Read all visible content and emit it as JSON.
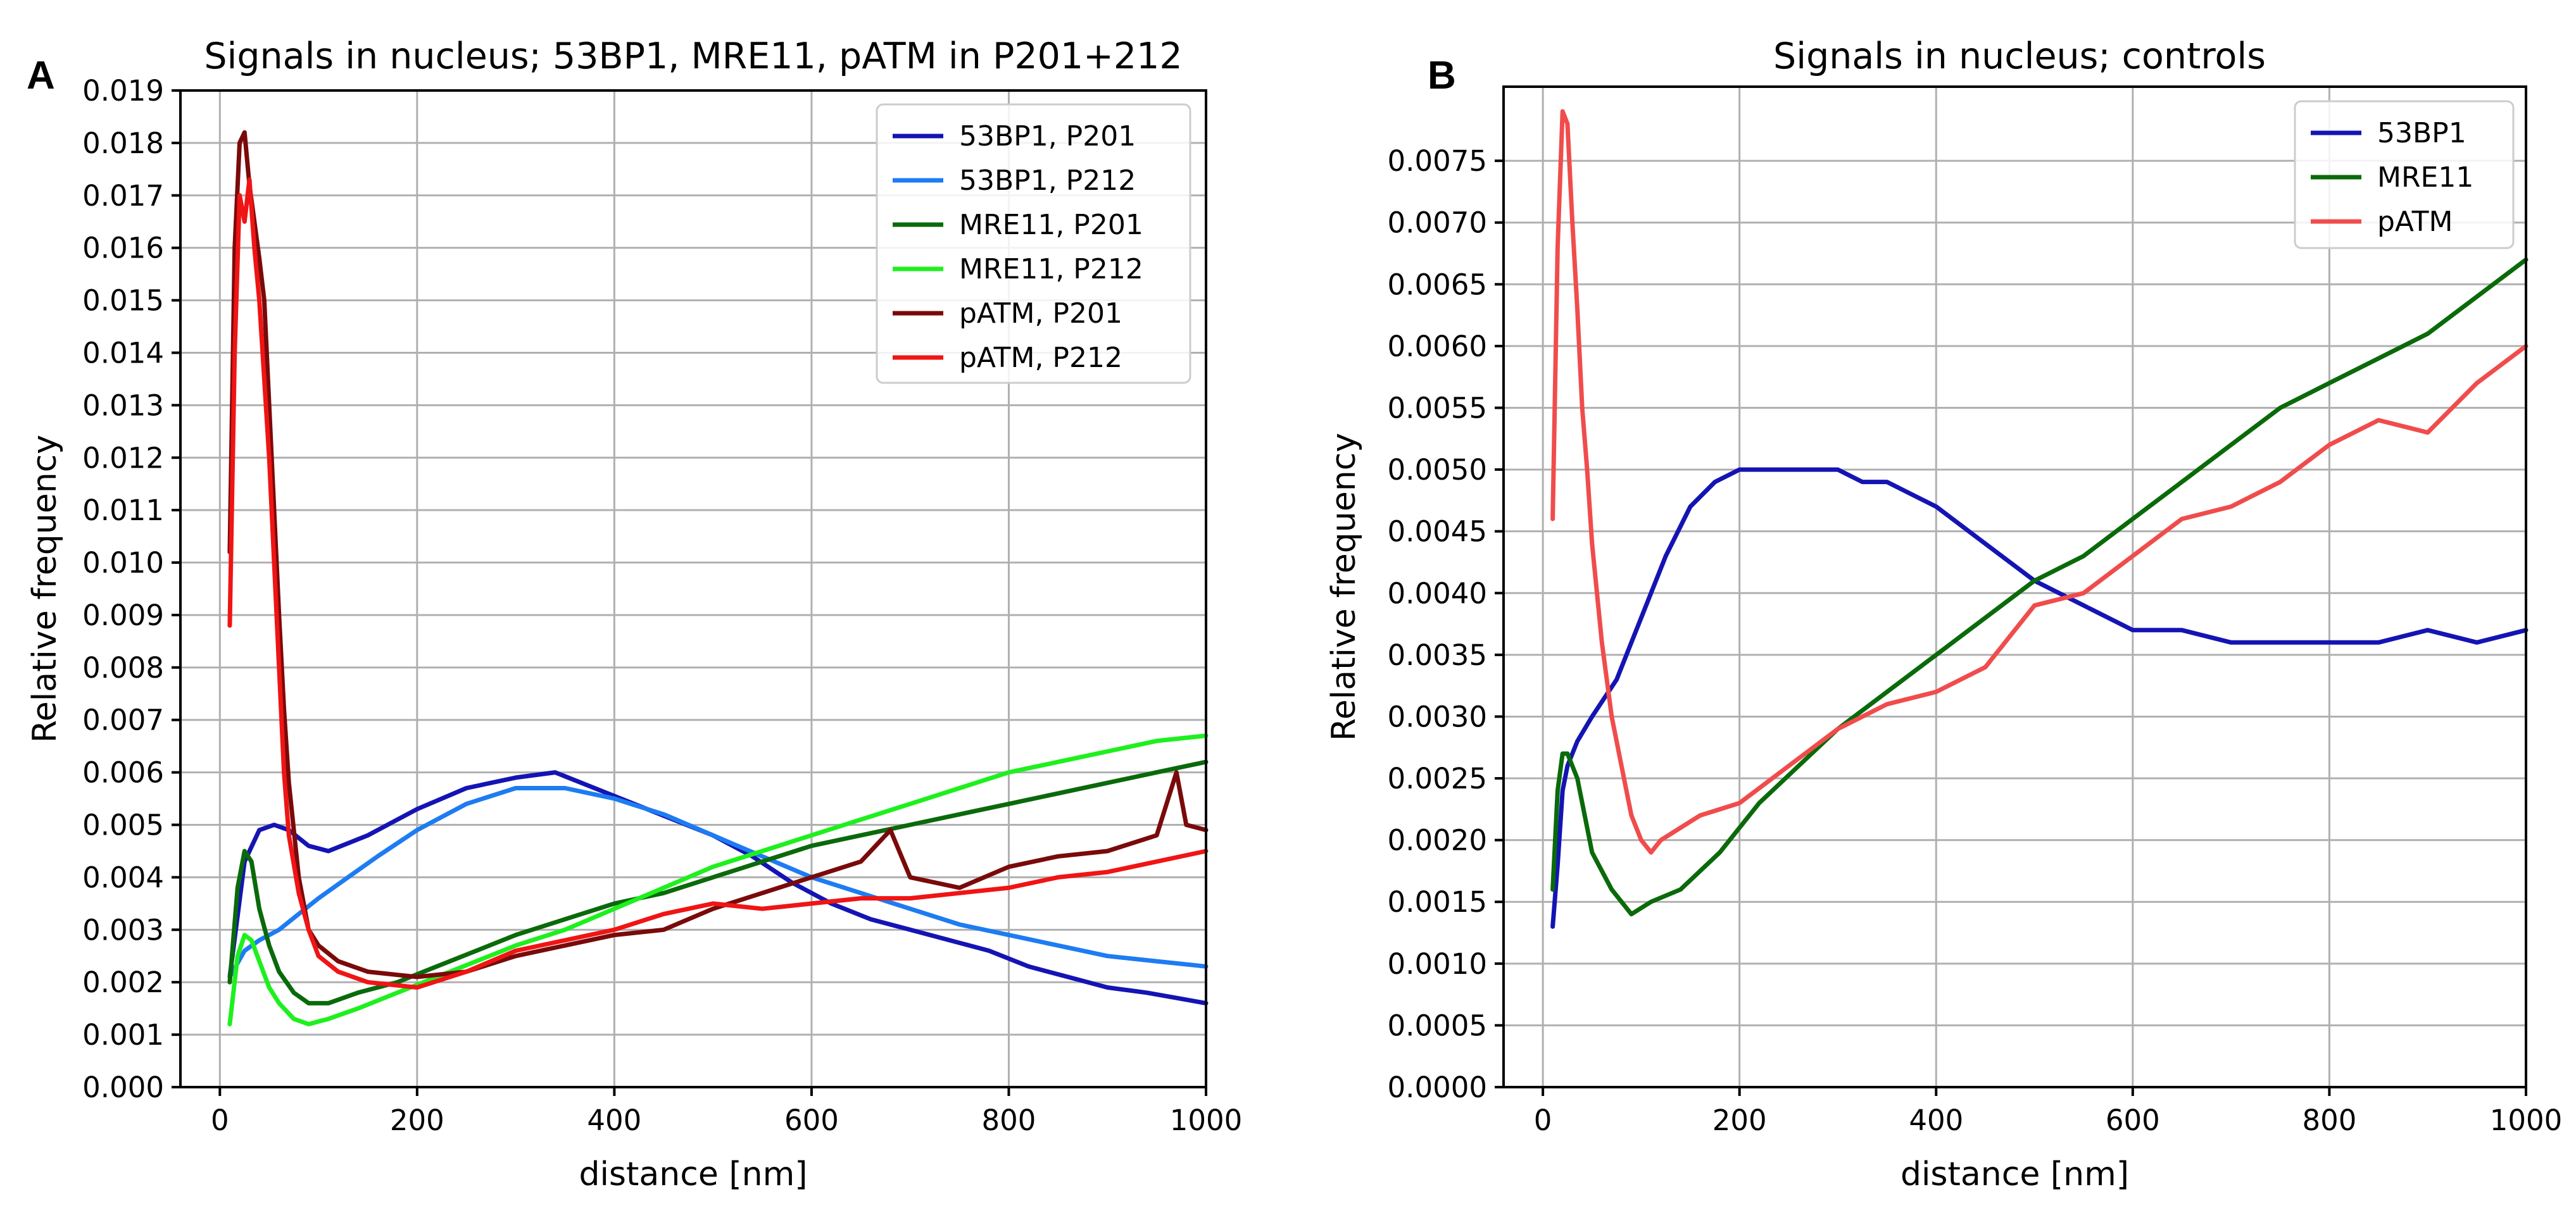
{
  "chart_data": [
    {
      "panel": "A",
      "type": "line",
      "title": "Signals in nucleus; 53BP1, MRE11, pATM in P201+212",
      "xlabel": "distance [nm]",
      "ylabel": "Relative frequency",
      "xlim": [
        -40,
        1000
      ],
      "ylim": [
        0,
        0.019
      ],
      "xticks": [
        0,
        200,
        400,
        600,
        800,
        1000
      ],
      "yticks": [
        0.0,
        0.001,
        0.002,
        0.003,
        0.004,
        0.005,
        0.006,
        0.007,
        0.008,
        0.009,
        0.01,
        0.011,
        0.012,
        0.013,
        0.014,
        0.015,
        0.016,
        0.017,
        0.018,
        0.019
      ],
      "ytick_labels": [
        "0.000",
        "0.001",
        "0.002",
        "0.003",
        "0.004",
        "0.005",
        "0.006",
        "0.007",
        "0.008",
        "0.009",
        "0.010",
        "0.011",
        "0.012",
        "0.013",
        "0.014",
        "0.015",
        "0.016",
        "0.017",
        "0.018",
        "0.019"
      ],
      "grid": true,
      "legend": "top-right",
      "series": [
        {
          "name": "53BP1, P201",
          "color": "#1414b4",
          "x": [
            10,
            25,
            40,
            55,
            70,
            90,
            110,
            150,
            200,
            250,
            300,
            340,
            380,
            420,
            460,
            500,
            540,
            580,
            620,
            660,
            700,
            740,
            780,
            820,
            860,
            900,
            940,
            970,
            1000
          ],
          "y": [
            0.0021,
            0.0043,
            0.0049,
            0.005,
            0.0049,
            0.0046,
            0.0045,
            0.0048,
            0.0053,
            0.0057,
            0.0059,
            0.006,
            0.0057,
            0.0054,
            0.0051,
            0.0048,
            0.0044,
            0.0039,
            0.0035,
            0.0032,
            0.003,
            0.0028,
            0.0026,
            0.0023,
            0.0021,
            0.0019,
            0.0018,
            0.0017,
            0.0016
          ]
        },
        {
          "name": "53BP1, P212",
          "color": "#1e7cf2",
          "x": [
            10,
            25,
            40,
            60,
            80,
            100,
            130,
            160,
            200,
            250,
            300,
            350,
            400,
            450,
            500,
            550,
            600,
            650,
            700,
            750,
            800,
            850,
            900,
            950,
            1000
          ],
          "y": [
            0.0021,
            0.0026,
            0.0028,
            0.003,
            0.0033,
            0.0036,
            0.004,
            0.0044,
            0.0049,
            0.0054,
            0.0057,
            0.0057,
            0.0055,
            0.0052,
            0.0048,
            0.0044,
            0.004,
            0.0037,
            0.0034,
            0.0031,
            0.0029,
            0.0027,
            0.0025,
            0.0024,
            0.0023
          ]
        },
        {
          "name": "MRE11, P201",
          "color": "#0a6a0a",
          "x": [
            10,
            18,
            25,
            32,
            40,
            50,
            60,
            75,
            90,
            110,
            140,
            180,
            220,
            260,
            300,
            350,
            400,
            450,
            500,
            550,
            600,
            650,
            700,
            750,
            800,
            850,
            900,
            950,
            1000
          ],
          "y": [
            0.002,
            0.0038,
            0.0045,
            0.0043,
            0.0034,
            0.0027,
            0.0022,
            0.0018,
            0.0016,
            0.0016,
            0.0018,
            0.002,
            0.0023,
            0.0026,
            0.0029,
            0.0032,
            0.0035,
            0.0037,
            0.004,
            0.0043,
            0.0046,
            0.0048,
            0.005,
            0.0052,
            0.0054,
            0.0056,
            0.0058,
            0.006,
            0.0062
          ]
        },
        {
          "name": "MRE11, P212",
          "color": "#1ef01e",
          "x": [
            10,
            18,
            25,
            32,
            40,
            50,
            60,
            75,
            90,
            110,
            140,
            180,
            220,
            260,
            300,
            350,
            400,
            450,
            500,
            550,
            600,
            650,
            700,
            750,
            800,
            850,
            900,
            950,
            1000
          ],
          "y": [
            0.0012,
            0.0025,
            0.0029,
            0.0028,
            0.0024,
            0.0019,
            0.0016,
            0.0013,
            0.0012,
            0.0013,
            0.0015,
            0.0018,
            0.0021,
            0.0024,
            0.0027,
            0.003,
            0.0034,
            0.0038,
            0.0042,
            0.0045,
            0.0048,
            0.0051,
            0.0054,
            0.0057,
            0.006,
            0.0062,
            0.0064,
            0.0066,
            0.0067
          ]
        },
        {
          "name": "pATM, P201",
          "color": "#7a0a0a",
          "x": [
            10,
            15,
            20,
            25,
            30,
            35,
            40,
            45,
            50,
            55,
            60,
            65,
            70,
            80,
            90,
            100,
            120,
            150,
            200,
            250,
            300,
            350,
            400,
            450,
            500,
            550,
            600,
            650,
            680,
            700,
            750,
            800,
            850,
            900,
            950,
            970,
            980,
            1000
          ],
          "y": [
            0.0102,
            0.016,
            0.018,
            0.0182,
            0.0172,
            0.0165,
            0.0158,
            0.015,
            0.013,
            0.011,
            0.009,
            0.0072,
            0.0058,
            0.004,
            0.003,
            0.0027,
            0.0024,
            0.0022,
            0.0021,
            0.0022,
            0.0025,
            0.0027,
            0.0029,
            0.003,
            0.0034,
            0.0037,
            0.004,
            0.0043,
            0.0049,
            0.004,
            0.0038,
            0.0042,
            0.0044,
            0.0045,
            0.0048,
            0.006,
            0.005,
            0.0049
          ]
        },
        {
          "name": "pATM, P212",
          "color": "#f01414",
          "x": [
            10,
            15,
            20,
            25,
            30,
            35,
            40,
            45,
            50,
            55,
            60,
            65,
            70,
            80,
            90,
            100,
            120,
            150,
            200,
            250,
            300,
            350,
            400,
            450,
            500,
            550,
            600,
            650,
            700,
            750,
            800,
            850,
            900,
            950,
            1000
          ],
          "y": [
            0.0088,
            0.014,
            0.017,
            0.0165,
            0.0173,
            0.016,
            0.015,
            0.0135,
            0.012,
            0.01,
            0.008,
            0.006,
            0.0048,
            0.0037,
            0.003,
            0.0025,
            0.0022,
            0.002,
            0.0019,
            0.0022,
            0.0026,
            0.0028,
            0.003,
            0.0033,
            0.0035,
            0.0034,
            0.0035,
            0.0036,
            0.0036,
            0.0037,
            0.0038,
            0.004,
            0.0041,
            0.0043,
            0.0045
          ]
        }
      ]
    },
    {
      "panel": "B",
      "type": "line",
      "title": "Signals in nucleus; controls",
      "xlabel": "distance [nm]",
      "ylabel": "Relative frequency",
      "xlim": [
        -40,
        1000
      ],
      "ylim": [
        0,
        0.0081
      ],
      "xticks": [
        0,
        200,
        400,
        600,
        800,
        1000
      ],
      "yticks": [
        0.0,
        0.0005,
        0.001,
        0.0015,
        0.002,
        0.0025,
        0.003,
        0.0035,
        0.004,
        0.0045,
        0.005,
        0.0055,
        0.006,
        0.0065,
        0.007,
        0.0075
      ],
      "ytick_labels": [
        "0.0000",
        "0.0005",
        "0.0010",
        "0.0015",
        "0.0020",
        "0.0025",
        "0.0030",
        "0.0035",
        "0.0040",
        "0.0045",
        "0.0050",
        "0.0055",
        "0.0060",
        "0.0065",
        "0.0070",
        "0.0075"
      ],
      "grid": true,
      "legend": "top-right",
      "series": [
        {
          "name": "53BP1",
          "color": "#1414b4",
          "x": [
            10,
            15,
            20,
            25,
            35,
            50,
            75,
            100,
            125,
            150,
            175,
            200,
            225,
            250,
            275,
            300,
            325,
            350,
            375,
            400,
            450,
            500,
            550,
            600,
            650,
            700,
            750,
            800,
            850,
            900,
            950,
            1000
          ],
          "y": [
            0.0013,
            0.0018,
            0.0024,
            0.0026,
            0.0028,
            0.003,
            0.0033,
            0.0038,
            0.0043,
            0.0047,
            0.0049,
            0.005,
            0.005,
            0.005,
            0.005,
            0.005,
            0.0049,
            0.0049,
            0.0048,
            0.0047,
            0.0044,
            0.0041,
            0.0039,
            0.0037,
            0.0037,
            0.0036,
            0.0036,
            0.0036,
            0.0036,
            0.0037,
            0.0036,
            0.0037
          ]
        },
        {
          "name": "MRE11",
          "color": "#0a6a0a",
          "x": [
            10,
            15,
            20,
            25,
            35,
            50,
            70,
            90,
            110,
            140,
            180,
            220,
            260,
            300,
            350,
            400,
            450,
            500,
            550,
            600,
            650,
            700,
            750,
            800,
            850,
            900,
            950,
            1000
          ],
          "y": [
            0.0016,
            0.0024,
            0.0027,
            0.0027,
            0.0025,
            0.0019,
            0.0016,
            0.0014,
            0.0015,
            0.0016,
            0.0019,
            0.0023,
            0.0026,
            0.0029,
            0.0032,
            0.0035,
            0.0038,
            0.0041,
            0.0043,
            0.0046,
            0.0049,
            0.0052,
            0.0055,
            0.0057,
            0.0059,
            0.0061,
            0.0064,
            0.0067
          ]
        },
        {
          "name": "pATM",
          "color": "#f04c4c",
          "x": [
            10,
            15,
            20,
            25,
            30,
            35,
            40,
            45,
            50,
            60,
            70,
            80,
            90,
            100,
            110,
            120,
            140,
            160,
            200,
            250,
            300,
            350,
            400,
            450,
            500,
            550,
            600,
            650,
            700,
            750,
            800,
            850,
            900,
            950,
            1000
          ],
          "y": [
            0.0046,
            0.0068,
            0.0079,
            0.0078,
            0.007,
            0.0063,
            0.0055,
            0.005,
            0.0044,
            0.0036,
            0.003,
            0.0026,
            0.0022,
            0.002,
            0.0019,
            0.002,
            0.0021,
            0.0022,
            0.0023,
            0.0026,
            0.0029,
            0.0031,
            0.0032,
            0.0034,
            0.0039,
            0.004,
            0.0043,
            0.0046,
            0.0047,
            0.0049,
            0.0052,
            0.0054,
            0.0053,
            0.0057,
            0.006
          ]
        }
      ]
    }
  ]
}
